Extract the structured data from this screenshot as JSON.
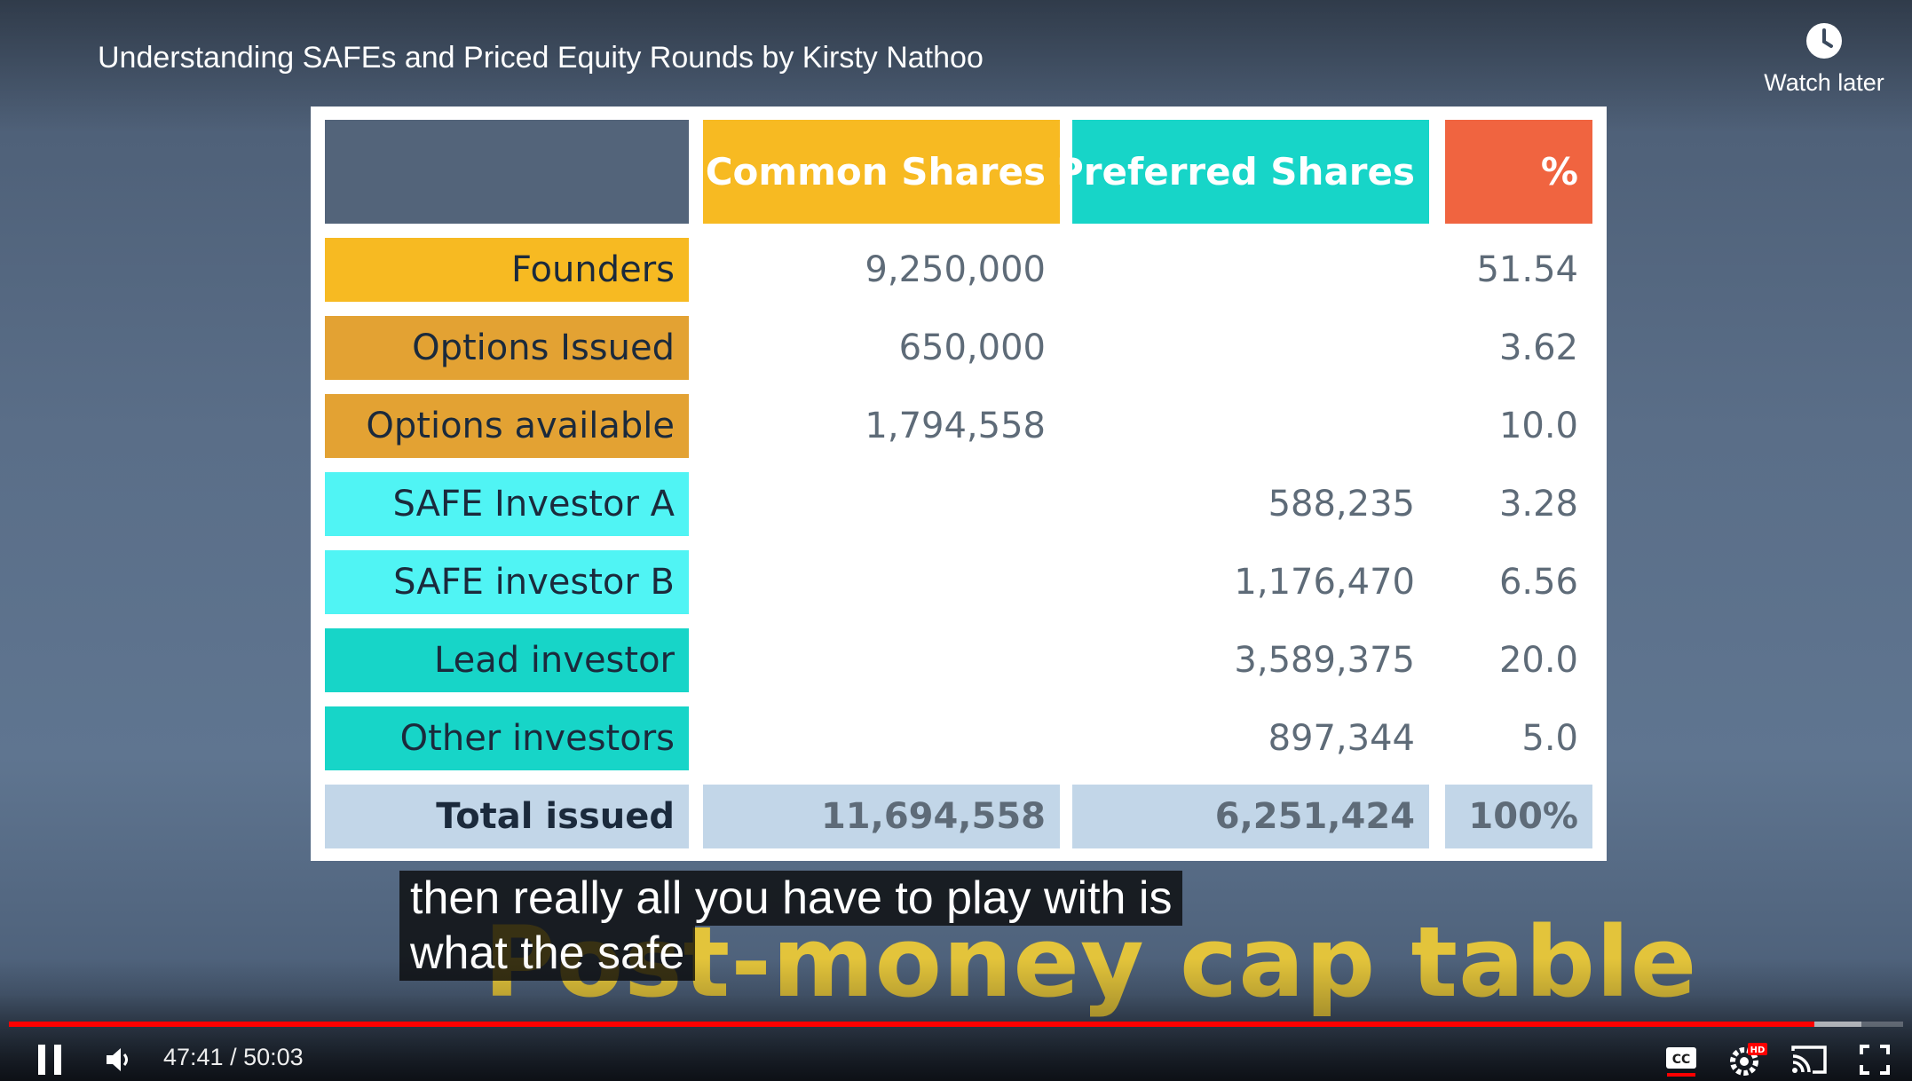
{
  "video": {
    "title": "Understanding SAFEs and Priced Equity Rounds by Kirsty Nathoo",
    "watch_later_label": "Watch later"
  },
  "table": {
    "headers": [
      "",
      "Common Shares",
      "Preferred Shares",
      "%"
    ],
    "header_colors": [
      "#53647a",
      "#f7ba22",
      "#17d5c8",
      "#f06440"
    ],
    "rows": [
      {
        "label": "Founders",
        "common": "9,250,000",
        "preferred": "",
        "pct": "51.54",
        "color": "#f7ba22"
      },
      {
        "label": "Options Issued",
        "common": "650,000",
        "preferred": "",
        "pct": "3.62",
        "color": "#e3a233"
      },
      {
        "label": "Options available",
        "common": "1,794,558",
        "preferred": "",
        "pct": "10.0",
        "color": "#e3a233"
      },
      {
        "label": "SAFE Investor A",
        "common": "",
        "preferred": "588,235",
        "pct": "3.28",
        "color": "#50f4f4"
      },
      {
        "label": "SAFE investor B",
        "common": "",
        "preferred": "1,176,470",
        "pct": "6.56",
        "color": "#50f4f4"
      },
      {
        "label": "Lead investor",
        "common": "",
        "preferred": "3,589,375",
        "pct": "20.0",
        "color": "#17d5c8"
      },
      {
        "label": "Other investors",
        "common": "",
        "preferred": "897,344",
        "pct": "5.0",
        "color": "#17d5c8"
      }
    ],
    "total": {
      "label": "Total issued",
      "common": "11,694,558",
      "preferred": "6,251,424",
      "pct": "100%",
      "color": "#c2d6e8"
    }
  },
  "captions": {
    "line1": "then really all you have to play with is",
    "line2": "what the safe"
  },
  "slide_heading": "Post-money cap table",
  "player": {
    "current_time": "47:41",
    "separator": "/",
    "duration": "50:03",
    "progress_fraction": 0.953,
    "buffered_fraction": 0.978,
    "accent_color": "#ff0000",
    "quality_badge": "HD",
    "icons": [
      "pause-icon",
      "volume-icon",
      "captions-icon",
      "settings-icon",
      "cast-icon",
      "fullscreen-icon"
    ]
  }
}
